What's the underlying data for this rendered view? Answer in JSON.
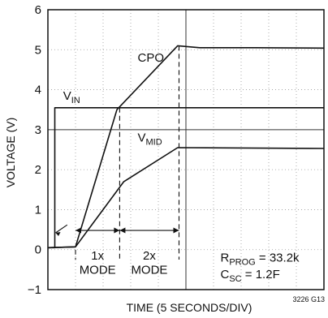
{
  "chart_data": {
    "type": "line",
    "xlabel": "TIME (5 SECONDS/DIV)",
    "ylabel": "VOLTAGE (V)",
    "ylim": [
      -1,
      6
    ],
    "xlim": [
      0,
      10
    ],
    "y_ticks": [
      "−1",
      "0",
      "1",
      "2",
      "3",
      "4",
      "5",
      "6"
    ],
    "grid": "dotted",
    "series": [
      {
        "name": "CPO",
        "label_main": "CPO",
        "label_sub": "",
        "points": [
          [
            0,
            0.05
          ],
          [
            1.0,
            0.07
          ],
          [
            2.5,
            3.5
          ],
          [
            4.7,
            5.1
          ],
          [
            5.5,
            5.05
          ],
          [
            7.5,
            5.05
          ],
          [
            10,
            5.04
          ]
        ]
      },
      {
        "name": "VIN",
        "label_main": "V",
        "label_sub": "IN",
        "points": [
          [
            0,
            0.05
          ],
          [
            0.25,
            0.05
          ],
          [
            0.25,
            3.55
          ],
          [
            10,
            3.55
          ]
        ]
      },
      {
        "name": "VMID",
        "label_main": "V",
        "label_sub": "MID",
        "points": [
          [
            0,
            0.05
          ],
          [
            1.0,
            0.07
          ],
          [
            2.75,
            1.7
          ],
          [
            4.7,
            2.55
          ],
          [
            10,
            2.53
          ]
        ]
      }
    ],
    "annotations": {
      "mode1": {
        "line1": "1x",
        "line2": "MODE"
      },
      "mode2": {
        "line1": "2x",
        "line2": "MODE"
      },
      "rprog": {
        "main": "R",
        "sub": "PROG",
        "value": " = 33.2k"
      },
      "csc": {
        "main": "C",
        "sub": "SC",
        "value": " = 1.2F"
      },
      "figure_id": "3226 G13"
    }
  }
}
